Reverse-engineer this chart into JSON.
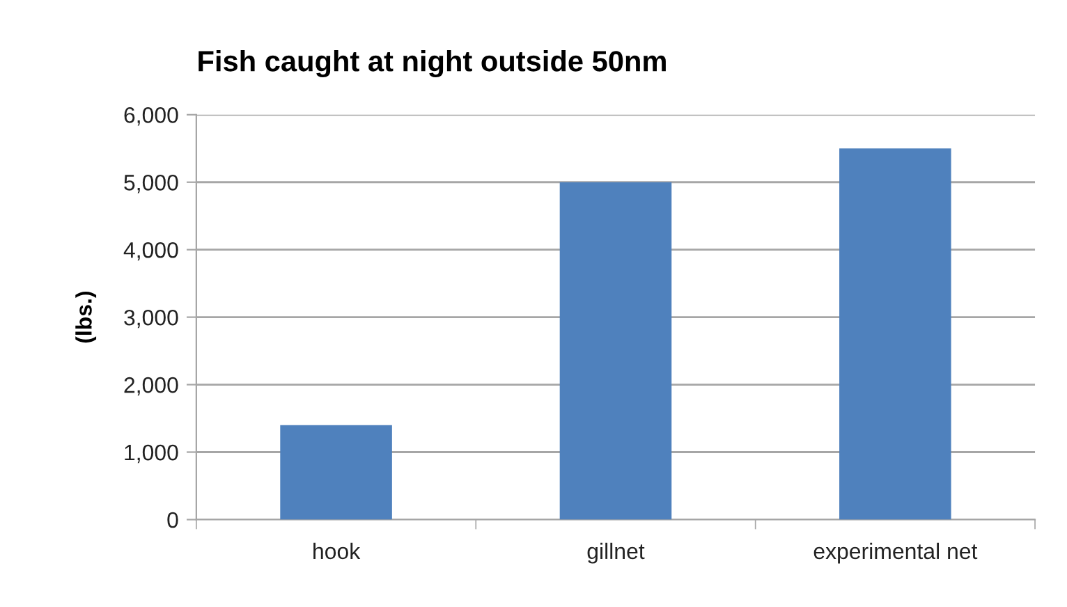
{
  "chart_data": {
    "type": "bar",
    "title": "Fish caught at night outside 50nm",
    "ylabel": "(lbs.)",
    "categories": [
      "hook",
      "gillnet",
      "experimental net"
    ],
    "values": [
      1400,
      5000,
      5500
    ],
    "color": "#4f81bd",
    "ylim": [
      0,
      6000
    ],
    "yticks": [
      {
        "value": 0,
        "label": "0"
      },
      {
        "value": 1000,
        "label": "1,000"
      },
      {
        "value": 2000,
        "label": "2,000"
      },
      {
        "value": 3000,
        "label": "3,000"
      },
      {
        "value": 4000,
        "label": "4,000"
      },
      {
        "value": 5000,
        "label": "5,000"
      },
      {
        "value": 6000,
        "label": "6,000"
      }
    ],
    "grid": "y",
    "legend": false
  }
}
